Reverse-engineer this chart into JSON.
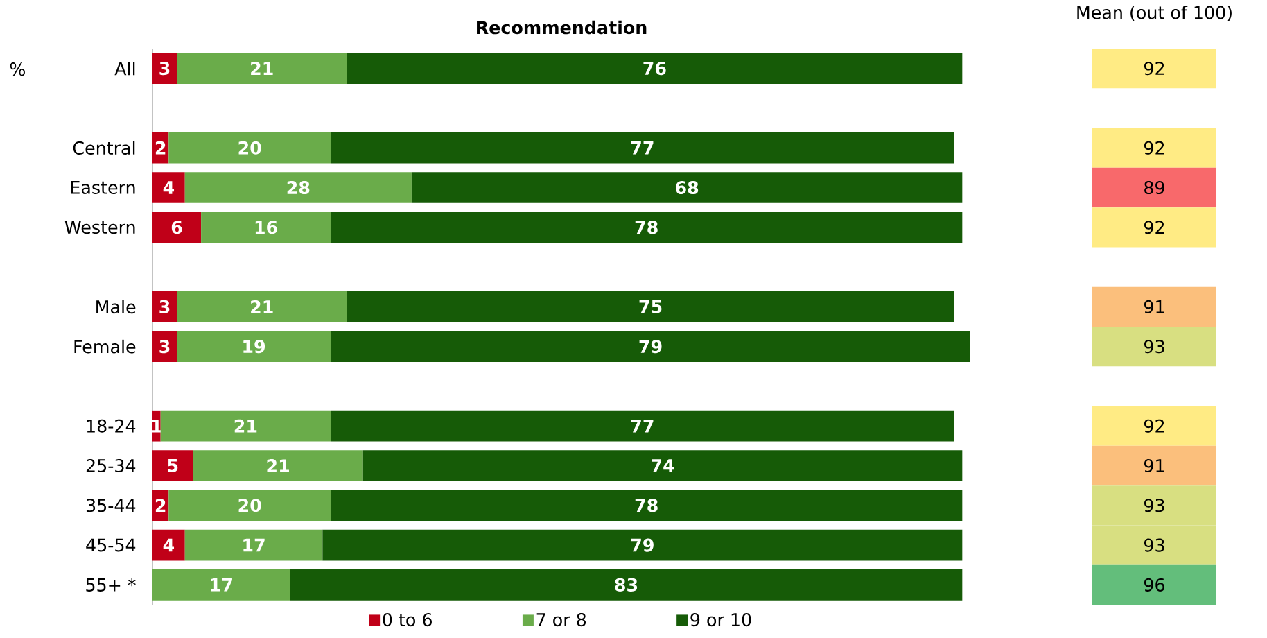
{
  "chart_data": [
    {
      "type": "bar",
      "orientation": "horizontal",
      "stacked": true,
      "title": "Recommendation",
      "ylabel": "%",
      "categories": [
        "All",
        null,
        "Central",
        "Eastern",
        "Western",
        null,
        "Male",
        "Female",
        null,
        "18-24",
        "25-34",
        "35-44",
        "45-54",
        "55+ *"
      ],
      "series": [
        {
          "name": "0 to 6",
          "color": "#c00018",
          "values": [
            3,
            null,
            2,
            4,
            6,
            null,
            3,
            3,
            null,
            1,
            5,
            2,
            4,
            null
          ]
        },
        {
          "name": "7 or 8",
          "color": "#6aac4a",
          "values": [
            21,
            null,
            20,
            28,
            16,
            null,
            21,
            19,
            null,
            21,
            21,
            20,
            17,
            17
          ]
        },
        {
          "name": "9 or 10",
          "color": "#165b07",
          "values": [
            76,
            null,
            77,
            68,
            78,
            null,
            75,
            79,
            null,
            77,
            74,
            78,
            79,
            83
          ]
        }
      ],
      "xlim": [
        0,
        101
      ],
      "data_labels": true,
      "legend": "bottom",
      "tick_labels": "y"
    },
    {
      "type": "other",
      "title": "Mean (out of 100)",
      "values": [
        92
      ],
      "colors": [
        "#ffeb84"
      ],
      "data_labels": true
    },
    {
      "type": "other",
      "values": [
        92,
        89,
        92
      ],
      "colors": [
        "#ffeb84",
        "#f8696b",
        "#ffeb84"
      ],
      "data_labels": true
    },
    {
      "type": "other",
      "values": [
        91,
        93
      ],
      "colors": [
        "#fbbf7c",
        "#d8df81"
      ],
      "data_labels": true
    },
    {
      "type": "other",
      "values": [
        92,
        91,
        93,
        93,
        96
      ],
      "colors": [
        "#ffeb84",
        "#fbbf7c",
        "#d8df81",
        "#d8df81",
        "#63be7b"
      ],
      "data_labels": true
    }
  ]
}
